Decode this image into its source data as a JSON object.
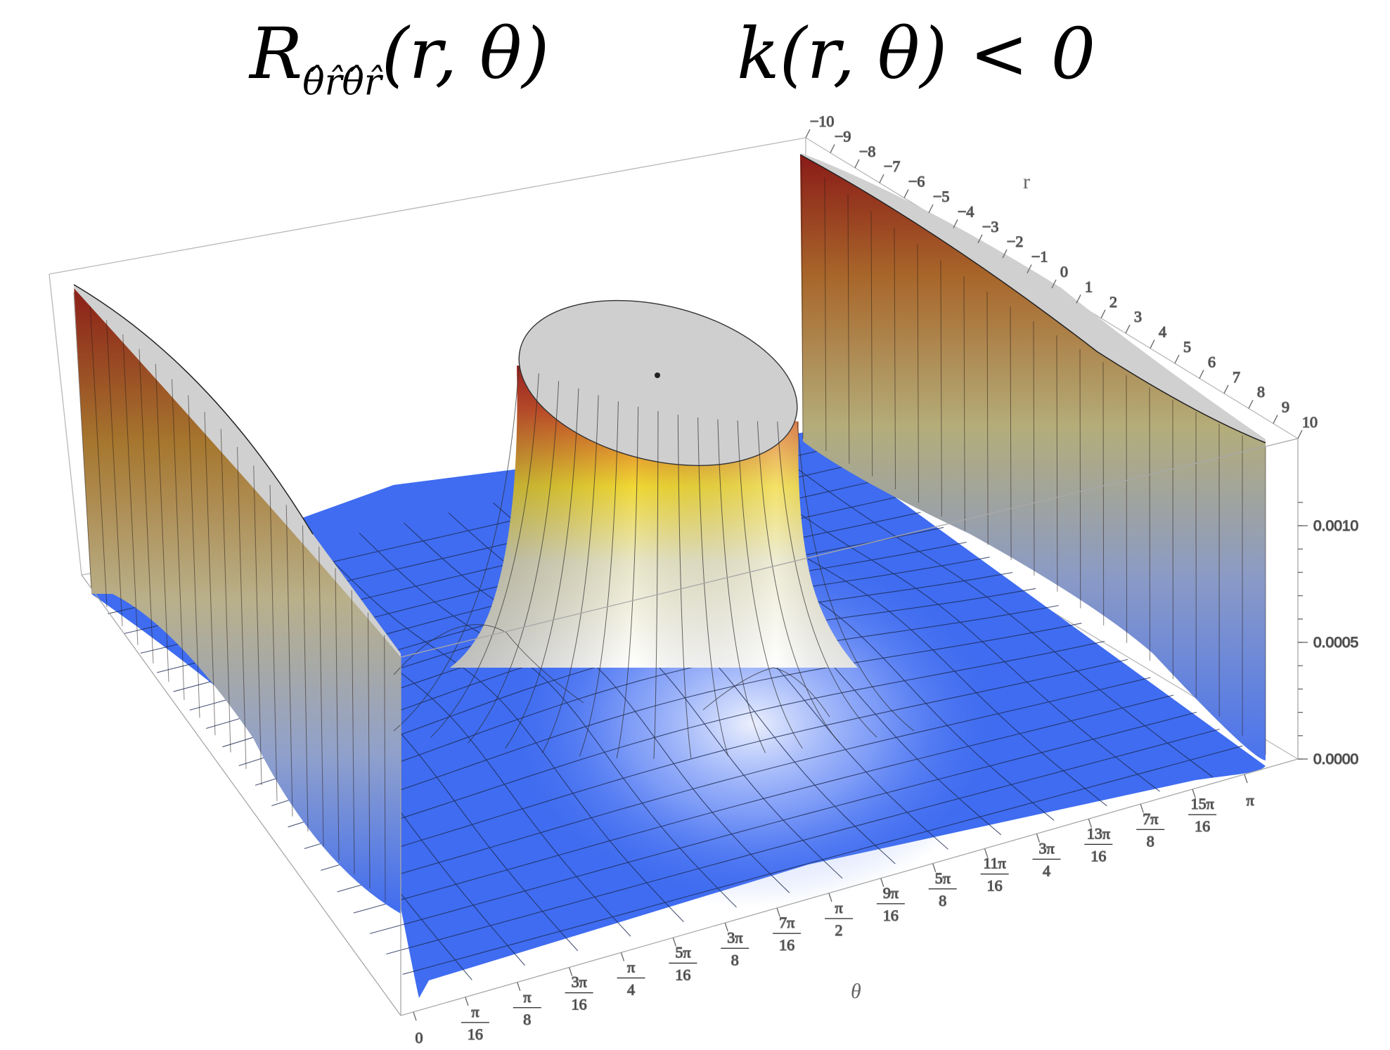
{
  "title_left_main": "R",
  "title_left_sub": "θ̂r̂θ̂r̂",
  "title_left_args": "(r, θ)",
  "title_right": "k(r, θ) < 0",
  "chart_data": {
    "type": "surface",
    "title": "R_{θ̂r̂θ̂r̂}(r, θ)   k(r, θ) < 0",
    "xlabel": "θ",
    "ylabel": "r",
    "zlabel": "",
    "x_ticks": [
      "0",
      "π/16",
      "π/8",
      "3π/16",
      "π/4",
      "5π/16",
      "3π/8",
      "7π/16",
      "π/2",
      "9π/16",
      "5π/8",
      "11π/16",
      "3π/4",
      "13π/16",
      "7π/8",
      "15π/16",
      "π"
    ],
    "y_ticks": [
      "-10",
      "-9",
      "-8",
      "-7",
      "-6",
      "-5",
      "-4",
      "-3",
      "-2",
      "-1",
      "0",
      "1",
      "2",
      "3",
      "4",
      "5",
      "6",
      "7",
      "8",
      "9",
      "10"
    ],
    "z_ticks": [
      "0.0000",
      "0.0005",
      "0.0010"
    ],
    "xlim": [
      0,
      3.14159
    ],
    "ylim": [
      -10,
      10
    ],
    "zlim": [
      0,
      0.0013
    ],
    "surface_samples": {
      "description": "Approximate surface height: near zero on most of the domain, rising steeply to clipped walls at θ=0 and θ=π and a clipped central peak near r=0, θ=π/2",
      "points": [
        {
          "r": 0,
          "theta": 1.5708,
          "z": 0.0013
        },
        {
          "r": 0,
          "theta": 0.7854,
          "z": 0.0001
        },
        {
          "r": 5,
          "theta": 1.5708,
          "z": 5e-05
        },
        {
          "r": -5,
          "theta": 1.5708,
          "z": 5e-05
        },
        {
          "r": 0,
          "theta": 0.0,
          "z": 0.0013
        },
        {
          "r": 0,
          "theta": 3.14159,
          "z": 0.0013
        },
        {
          "r": 10,
          "theta": 0.05,
          "z": 0.0013
        },
        {
          "r": -10,
          "theta": 3.09,
          "z": 0.0013
        },
        {
          "r": 8,
          "theta": 1.0,
          "z": 0.0
        },
        {
          "r": -8,
          "theta": 2.2,
          "z": 0.0
        }
      ]
    },
    "clipped_regions": [
      "central peak near r=0, θ=π/2",
      "wall at θ=0",
      "wall at θ=π"
    ],
    "colors": {
      "low": "#3f6cf0",
      "mid": "#ffffff",
      "mid2": "#f2e12b",
      "high": "#c8281e",
      "clip": "#d0d0d0"
    }
  }
}
